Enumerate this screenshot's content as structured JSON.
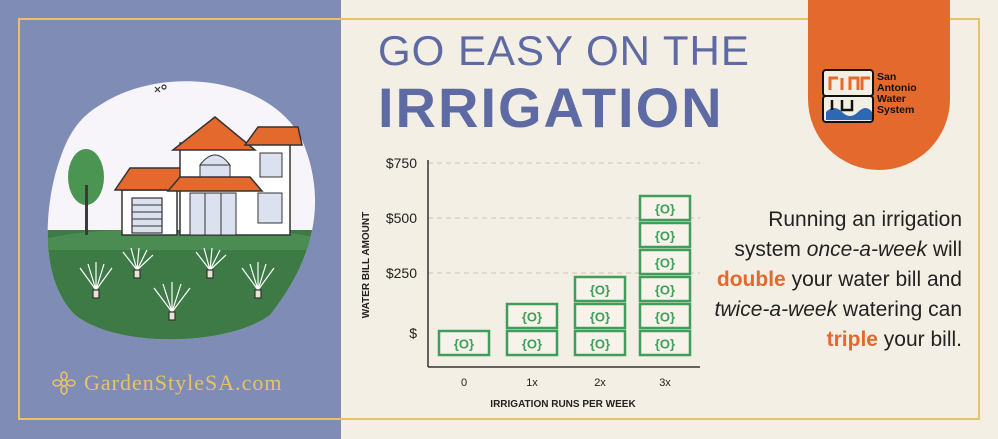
{
  "heading": {
    "line1": "GO EASY ON THE",
    "line2": "IRRIGATION"
  },
  "org_logo_text": {
    "line1": "San",
    "line2": "Antonio",
    "line3": "Water",
    "line4": "System"
  },
  "brand": {
    "name": "GardenStyleSA.com"
  },
  "description": {
    "p1": "Running an irrigation system ",
    "em1": "once-a-week",
    "p2": " will ",
    "hl1": "double",
    "p3": " your water bill and ",
    "em2": "twice-a-week",
    "p4": " watering can ",
    "hl2": "triple",
    "p5": " your bill."
  },
  "colors": {
    "left_bg": "#7f8cb6",
    "right_bg": "#f4efe4",
    "accent": "#e4692c",
    "title": "#5e6aa3",
    "money": "#3e9e5a",
    "gold": "#e7c268"
  },
  "chart_data": {
    "type": "bar",
    "xlabel": "IRRIGATION RUNS PER WEEK",
    "ylabel": "WATER BILL AMOUNT",
    "categories": [
      "0",
      "1x",
      "2x",
      "3x"
    ],
    "values": [
      1,
      2,
      3,
      6
    ],
    "value_unit": "stacked bill icons",
    "ytick_labels": [
      "$",
      "$250",
      "$500",
      "$750"
    ],
    "bill_icon_text": "{O}",
    "grid": true
  }
}
